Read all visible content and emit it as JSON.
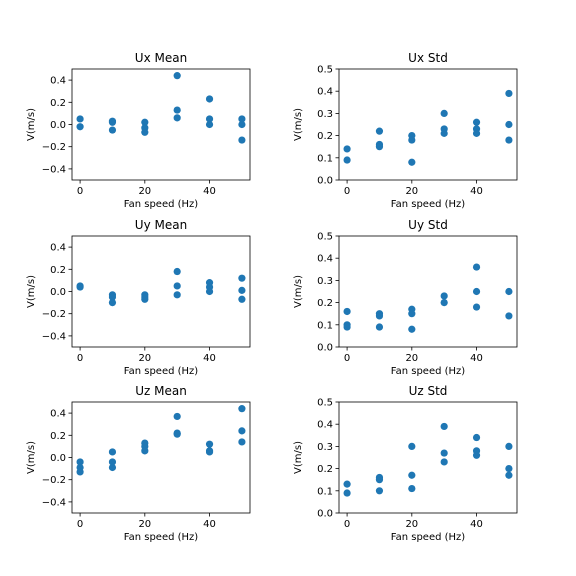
{
  "chart_data": [
    {
      "type": "scatter",
      "title": "Ux Mean",
      "xlabel": "Fan speed (Hz)",
      "ylabel": "V(m/s)",
      "ylim": [
        -0.5,
        0.5
      ],
      "yticks": [
        "−0.4",
        "−0.2",
        "0.0",
        "0.2",
        "0.4"
      ],
      "xticks": [
        "0",
        "20",
        "40"
      ],
      "color": "#1f77b4",
      "points": [
        {
          "x": 0,
          "y": 0.05
        },
        {
          "x": 0,
          "y": -0.02
        },
        {
          "x": 10,
          "y": 0.03
        },
        {
          "x": 10,
          "y": 0.02
        },
        {
          "x": 10,
          "y": -0.05
        },
        {
          "x": 20,
          "y": 0.02
        },
        {
          "x": 20,
          "y": -0.03
        },
        {
          "x": 20,
          "y": -0.07
        },
        {
          "x": 30,
          "y": 0.44
        },
        {
          "x": 30,
          "y": 0.13
        },
        {
          "x": 30,
          "y": 0.06
        },
        {
          "x": 40,
          "y": 0.23
        },
        {
          "x": 40,
          "y": 0.05
        },
        {
          "x": 40,
          "y": 0.0
        },
        {
          "x": 50,
          "y": 0.05
        },
        {
          "x": 50,
          "y": 0.0
        },
        {
          "x": 50,
          "y": -0.14
        }
      ]
    },
    {
      "type": "scatter",
      "title": "Ux Std",
      "xlabel": "Fan speed (Hz)",
      "ylabel": "V(m/s)",
      "ylim": [
        0.0,
        0.5
      ],
      "yticks": [
        "0.0",
        "0.1",
        "0.2",
        "0.3",
        "0.4",
        "0.5"
      ],
      "xticks": [
        "0",
        "20",
        "40"
      ],
      "color": "#1f77b4",
      "points": [
        {
          "x": 0,
          "y": 0.14
        },
        {
          "x": 0,
          "y": 0.09
        },
        {
          "x": 10,
          "y": 0.22
        },
        {
          "x": 10,
          "y": 0.16
        },
        {
          "x": 10,
          "y": 0.15
        },
        {
          "x": 20,
          "y": 0.2
        },
        {
          "x": 20,
          "y": 0.18
        },
        {
          "x": 20,
          "y": 0.08
        },
        {
          "x": 30,
          "y": 0.3
        },
        {
          "x": 30,
          "y": 0.23
        },
        {
          "x": 30,
          "y": 0.21
        },
        {
          "x": 40,
          "y": 0.26
        },
        {
          "x": 40,
          "y": 0.23
        },
        {
          "x": 40,
          "y": 0.21
        },
        {
          "x": 50,
          "y": 0.39
        },
        {
          "x": 50,
          "y": 0.25
        },
        {
          "x": 50,
          "y": 0.18
        }
      ]
    },
    {
      "type": "scatter",
      "title": "Uy Mean",
      "xlabel": "Fan speed (Hz)",
      "ylabel": "V(m/s)",
      "ylim": [
        -0.5,
        0.5
      ],
      "yticks": [
        "−0.4",
        "−0.2",
        "0.0",
        "0.2",
        "0.4"
      ],
      "xticks": [
        "0",
        "20",
        "40"
      ],
      "color": "#1f77b4",
      "points": [
        {
          "x": 0,
          "y": 0.05
        },
        {
          "x": 0,
          "y": 0.04
        },
        {
          "x": 10,
          "y": -0.03
        },
        {
          "x": 10,
          "y": -0.05
        },
        {
          "x": 10,
          "y": -0.1
        },
        {
          "x": 20,
          "y": -0.03
        },
        {
          "x": 20,
          "y": -0.05
        },
        {
          "x": 20,
          "y": -0.07
        },
        {
          "x": 30,
          "y": 0.18
        },
        {
          "x": 30,
          "y": 0.05
        },
        {
          "x": 30,
          "y": -0.03
        },
        {
          "x": 40,
          "y": 0.08
        },
        {
          "x": 40,
          "y": 0.04
        },
        {
          "x": 40,
          "y": 0.0
        },
        {
          "x": 50,
          "y": 0.12
        },
        {
          "x": 50,
          "y": 0.01
        },
        {
          "x": 50,
          "y": -0.07
        }
      ]
    },
    {
      "type": "scatter",
      "title": "Uy Std",
      "xlabel": "Fan speed (Hz)",
      "ylabel": "V(m/s)",
      "ylim": [
        0.0,
        0.5
      ],
      "yticks": [
        "0.0",
        "0.1",
        "0.2",
        "0.3",
        "0.4",
        "0.5"
      ],
      "xticks": [
        "0",
        "20",
        "40"
      ],
      "color": "#1f77b4",
      "points": [
        {
          "x": 0,
          "y": 0.16
        },
        {
          "x": 0,
          "y": 0.1
        },
        {
          "x": 0,
          "y": 0.09
        },
        {
          "x": 10,
          "y": 0.15
        },
        {
          "x": 10,
          "y": 0.14
        },
        {
          "x": 10,
          "y": 0.09
        },
        {
          "x": 20,
          "y": 0.17
        },
        {
          "x": 20,
          "y": 0.15
        },
        {
          "x": 20,
          "y": 0.08
        },
        {
          "x": 30,
          "y": 0.23
        },
        {
          "x": 30,
          "y": 0.2
        },
        {
          "x": 40,
          "y": 0.36
        },
        {
          "x": 40,
          "y": 0.25
        },
        {
          "x": 40,
          "y": 0.18
        },
        {
          "x": 50,
          "y": 0.25
        },
        {
          "x": 50,
          "y": 0.14
        }
      ]
    },
    {
      "type": "scatter",
      "title": "Uz Mean",
      "xlabel": "Fan speed (Hz)",
      "ylabel": "V(m/s)",
      "ylim": [
        -0.5,
        0.5
      ],
      "yticks": [
        "−0.4",
        "−0.2",
        "0.0",
        "0.2",
        "0.4"
      ],
      "xticks": [
        "0",
        "20",
        "40"
      ],
      "color": "#1f77b4",
      "points": [
        {
          "x": 0,
          "y": -0.04
        },
        {
          "x": 0,
          "y": -0.09
        },
        {
          "x": 0,
          "y": -0.13
        },
        {
          "x": 10,
          "y": 0.05
        },
        {
          "x": 10,
          "y": -0.04
        },
        {
          "x": 10,
          "y": -0.09
        },
        {
          "x": 20,
          "y": 0.13
        },
        {
          "x": 20,
          "y": 0.1
        },
        {
          "x": 20,
          "y": 0.06
        },
        {
          "x": 30,
          "y": 0.37
        },
        {
          "x": 30,
          "y": 0.22
        },
        {
          "x": 30,
          "y": 0.21
        },
        {
          "x": 40,
          "y": 0.12
        },
        {
          "x": 40,
          "y": 0.06
        },
        {
          "x": 40,
          "y": 0.05
        },
        {
          "x": 50,
          "y": 0.44
        },
        {
          "x": 50,
          "y": 0.24
        },
        {
          "x": 50,
          "y": 0.14
        }
      ]
    },
    {
      "type": "scatter",
      "title": "Uz Std",
      "xlabel": "Fan speed (Hz)",
      "ylabel": "V(m/s)",
      "ylim": [
        0.0,
        0.5
      ],
      "yticks": [
        "0.0",
        "0.1",
        "0.2",
        "0.3",
        "0.4",
        "0.5"
      ],
      "xticks": [
        "0",
        "20",
        "40"
      ],
      "color": "#1f77b4",
      "points": [
        {
          "x": 0,
          "y": 0.13
        },
        {
          "x": 0,
          "y": 0.09
        },
        {
          "x": 10,
          "y": 0.16
        },
        {
          "x": 10,
          "y": 0.15
        },
        {
          "x": 10,
          "y": 0.1
        },
        {
          "x": 20,
          "y": 0.3
        },
        {
          "x": 20,
          "y": 0.17
        },
        {
          "x": 20,
          "y": 0.11
        },
        {
          "x": 30,
          "y": 0.39
        },
        {
          "x": 30,
          "y": 0.27
        },
        {
          "x": 30,
          "y": 0.23
        },
        {
          "x": 40,
          "y": 0.34
        },
        {
          "x": 40,
          "y": 0.28
        },
        {
          "x": 40,
          "y": 0.26
        },
        {
          "x": 50,
          "y": 0.3
        },
        {
          "x": 50,
          "y": 0.2
        },
        {
          "x": 50,
          "y": 0.17
        }
      ]
    }
  ]
}
